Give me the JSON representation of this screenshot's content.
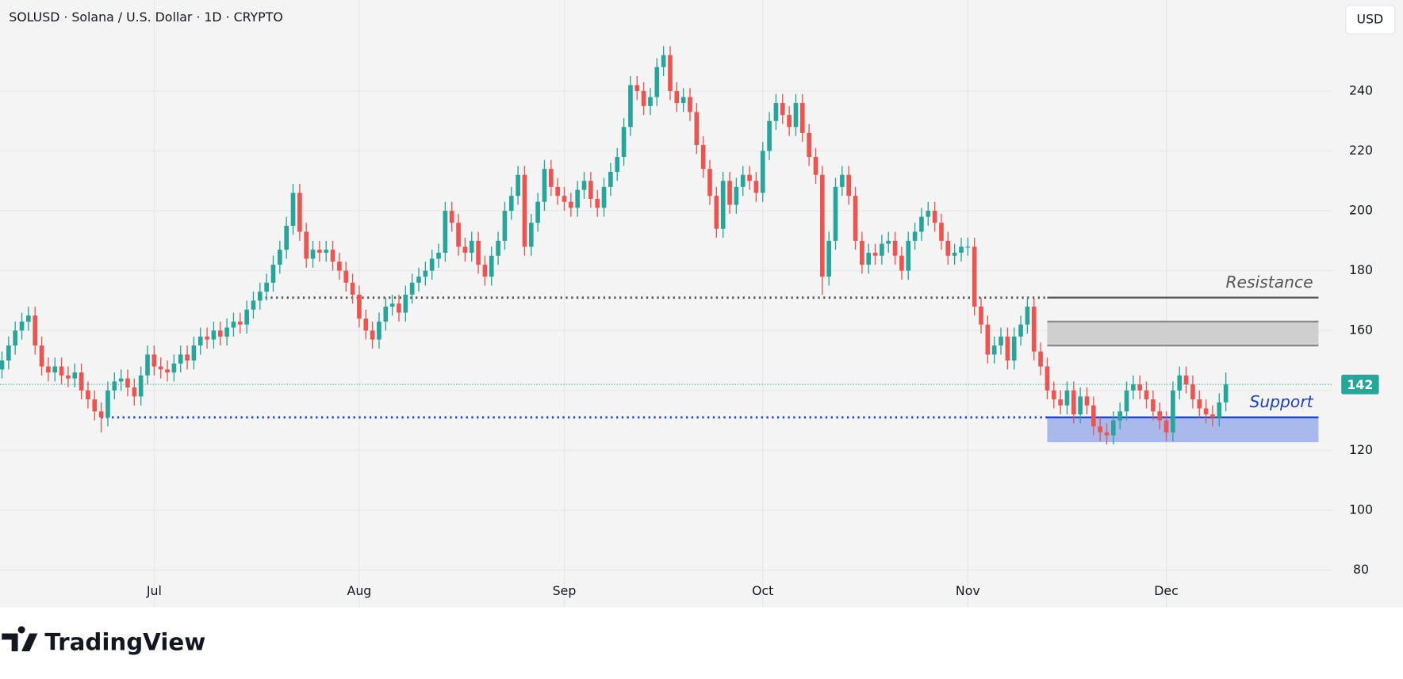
{
  "chart_data": {
    "type": "candlestick",
    "title": "SOLUSD · Solana / U.S. Dollar · 1D · CRYPTO",
    "currency": "USD",
    "brand": "TradingView",
    "up_color": "#26a69a",
    "down_color": "#ef5350",
    "grid": true,
    "xlim": [
      -0.3,
      201.1
    ],
    "ylim": [
      67.5,
      270.4
    ],
    "yticks": [
      80,
      100,
      120,
      140,
      160,
      180,
      200,
      220,
      240
    ],
    "xticks": [
      {
        "value": 23,
        "label": "Jul"
      },
      {
        "value": 54,
        "label": "Aug"
      },
      {
        "value": 85,
        "label": "Sep"
      },
      {
        "value": 115,
        "label": "Oct"
      },
      {
        "value": 146,
        "label": "Nov"
      },
      {
        "value": 176,
        "label": "Dec"
      }
    ],
    "open": [
      147,
      150,
      155,
      160,
      163,
      165,
      155,
      148,
      146,
      148,
      145,
      144,
      146,
      140,
      137,
      133,
      131,
      140,
      143,
      144,
      141,
      138,
      145,
      152,
      148,
      147,
      146,
      149,
      152,
      150,
      155,
      158,
      157,
      160,
      158,
      161,
      163,
      162,
      167,
      170,
      173,
      176,
      182,
      187,
      195,
      206,
      193,
      184,
      187,
      186,
      187,
      183,
      180,
      176,
      172,
      164,
      160,
      157,
      163,
      168,
      169,
      166,
      172,
      176,
      178,
      180,
      184,
      186,
      200,
      196,
      188,
      186,
      190,
      182,
      178,
      185,
      190,
      200,
      205,
      212,
      188,
      196,
      203,
      214,
      208,
      205,
      203,
      201,
      207,
      210,
      204,
      201,
      208,
      213,
      218,
      228,
      242,
      240,
      235,
      238,
      248,
      252,
      240,
      236,
      238,
      233,
      222,
      214,
      205,
      194,
      210,
      202,
      208,
      212,
      210,
      206,
      220,
      230,
      236,
      232,
      228,
      236,
      226,
      218,
      212,
      178,
      190,
      208,
      212,
      205,
      190,
      182,
      186,
      185,
      189,
      190,
      185,
      180,
      190,
      193,
      198,
      200,
      196,
      190,
      185,
      186,
      188,
      188,
      168,
      162,
      152,
      155,
      158,
      150,
      158,
      162,
      168,
      153,
      148,
      140,
      137,
      135,
      140,
      132,
      138,
      135,
      128,
      126,
      125,
      130,
      133,
      140,
      142,
      140,
      137,
      133,
      130,
      126,
      140,
      145,
      142,
      137,
      134,
      132,
      131,
      136
    ],
    "high": [
      153,
      158,
      163,
      166,
      168,
      168,
      158,
      151,
      151,
      151,
      148,
      149,
      149,
      143,
      140,
      136,
      143,
      146,
      147,
      147,
      144,
      148,
      155,
      155,
      151,
      150,
      152,
      155,
      155,
      158,
      161,
      161,
      163,
      163,
      164,
      166,
      166,
      170,
      173,
      176,
      179,
      185,
      190,
      198,
      209,
      209,
      196,
      190,
      190,
      190,
      190,
      186,
      183,
      179,
      175,
      167,
      163,
      166,
      171,
      172,
      172,
      175,
      179,
      181,
      183,
      187,
      189,
      203,
      203,
      199,
      191,
      193,
      193,
      185,
      188,
      193,
      203,
      208,
      215,
      215,
      199,
      206,
      217,
      217,
      211,
      208,
      206,
      210,
      213,
      213,
      207,
      211,
      216,
      221,
      231,
      245,
      245,
      243,
      241,
      251,
      255,
      255,
      243,
      241,
      241,
      236,
      225,
      217,
      208,
      213,
      213,
      211,
      215,
      215,
      213,
      223,
      233,
      239,
      239,
      235,
      239,
      239,
      229,
      221,
      215,
      193,
      211,
      215,
      215,
      208,
      193,
      189,
      189,
      192,
      193,
      193,
      188,
      193,
      196,
      201,
      203,
      203,
      199,
      193,
      189,
      191,
      191,
      191,
      171,
      165,
      158,
      161,
      161,
      161,
      165,
      171,
      171,
      156,
      151,
      143,
      140,
      143,
      143,
      141,
      141,
      138,
      131,
      129,
      133,
      136,
      143,
      145,
      145,
      143,
      140,
      136,
      133,
      143,
      148,
      148,
      145,
      140,
      137,
      135,
      139,
      146
    ],
    "low": [
      144,
      147,
      152,
      157,
      160,
      152,
      145,
      143,
      143,
      142,
      141,
      141,
      137,
      134,
      130,
      126,
      128,
      137,
      140,
      138,
      135,
      135,
      142,
      145,
      144,
      143,
      143,
      146,
      147,
      147,
      152,
      154,
      154,
      155,
      155,
      158,
      159,
      159,
      164,
      167,
      170,
      173,
      179,
      184,
      192,
      190,
      181,
      181,
      183,
      183,
      180,
      177,
      173,
      169,
      161,
      157,
      154,
      154,
      160,
      165,
      163,
      163,
      169,
      173,
      175,
      177,
      181,
      183,
      193,
      185,
      183,
      183,
      179,
      175,
      175,
      182,
      187,
      197,
      202,
      185,
      185,
      193,
      200,
      205,
      202,
      200,
      198,
      198,
      204,
      201,
      198,
      198,
      205,
      210,
      215,
      225,
      237,
      232,
      232,
      235,
      245,
      237,
      233,
      233,
      230,
      219,
      211,
      202,
      191,
      191,
      199,
      199,
      205,
      207,
      203,
      203,
      217,
      227,
      229,
      225,
      225,
      223,
      215,
      209,
      172,
      175,
      187,
      205,
      202,
      187,
      179,
      179,
      182,
      182,
      186,
      182,
      177,
      177,
      187,
      190,
      195,
      193,
      187,
      182,
      182,
      183,
      185,
      165,
      159,
      149,
      149,
      152,
      147,
      147,
      155,
      159,
      150,
      145,
      137,
      134,
      132,
      132,
      129,
      129,
      132,
      125,
      123,
      122,
      122,
      127,
      130,
      137,
      137,
      134,
      130,
      127,
      123,
      123,
      137,
      139,
      134,
      131,
      129,
      128,
      128,
      133
    ],
    "close": [
      150,
      155,
      160,
      163,
      165,
      155,
      148,
      146,
      148,
      145,
      144,
      146,
      140,
      137,
      133,
      131,
      140,
      143,
      144,
      141,
      138,
      145,
      152,
      148,
      147,
      146,
      149,
      152,
      150,
      155,
      158,
      157,
      160,
      158,
      161,
      163,
      162,
      167,
      170,
      173,
      176,
      182,
      187,
      195,
      206,
      193,
      184,
      187,
      186,
      187,
      183,
      180,
      176,
      172,
      164,
      160,
      157,
      163,
      168,
      169,
      166,
      172,
      176,
      178,
      180,
      184,
      186,
      200,
      196,
      188,
      186,
      190,
      182,
      178,
      185,
      190,
      200,
      205,
      212,
      188,
      196,
      203,
      214,
      208,
      205,
      203,
      201,
      207,
      210,
      204,
      201,
      208,
      213,
      218,
      228,
      242,
      240,
      235,
      238,
      248,
      252,
      240,
      236,
      238,
      233,
      222,
      214,
      205,
      194,
      210,
      202,
      208,
      212,
      210,
      206,
      220,
      230,
      236,
      232,
      228,
      236,
      226,
      218,
      212,
      178,
      190,
      208,
      212,
      205,
      190,
      182,
      186,
      185,
      189,
      190,
      185,
      180,
      190,
      193,
      198,
      200,
      196,
      190,
      185,
      186,
      188,
      188,
      168,
      162,
      152,
      155,
      158,
      150,
      158,
      162,
      168,
      153,
      148,
      140,
      137,
      135,
      140,
      132,
      138,
      135,
      128,
      126,
      125,
      130,
      133,
      140,
      142,
      140,
      137,
      133,
      130,
      126,
      140,
      145,
      142,
      137,
      134,
      132,
      131,
      136,
      142
    ],
    "levels": [
      {
        "label": "Resistance",
        "value": 171,
        "from": 39,
        "zone_from": 158,
        "line_color": "#555555",
        "text_color": "#555555"
      },
      {
        "label": "Support",
        "value": 131,
        "from": 15,
        "zone_from": 158,
        "line_color": "#1e40c8",
        "text_color": "#1e40c8"
      }
    ],
    "zones": [
      {
        "low": 155,
        "high": 163,
        "from": 158,
        "to": 199,
        "color": "#cfcfcf",
        "edge": "#8a8a8a"
      },
      {
        "low": 123,
        "high": 131,
        "from": 158,
        "to": 199,
        "color": "#a9b9ec",
        "edge": "#a9b9ec"
      }
    ]
  }
}
